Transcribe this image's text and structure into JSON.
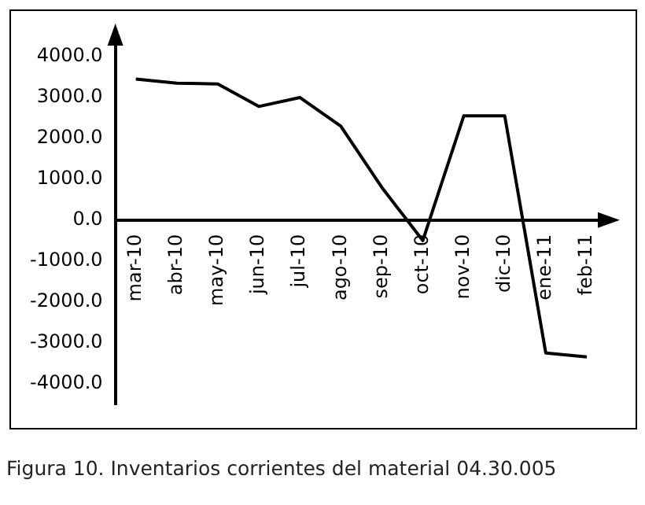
{
  "chart_data": {
    "type": "line",
    "categories": [
      "mar-10",
      "abr-10",
      "may-10",
      "jun-10",
      "jul-10",
      "ago-10",
      "sep-10",
      "oct-10",
      "nov-10",
      "dic-10",
      "ene-11",
      "feb-11"
    ],
    "series": [
      {
        "color": "#000000",
        "values": [
          3450,
          3350,
          3330,
          2780,
          3000,
          2300,
          800,
          -500,
          2550,
          2550,
          -3250,
          -3350
        ]
      }
    ],
    "ylim": [
      -4500,
      4500
    ],
    "yticks": [
      {
        "value": -4000,
        "label": "-4000.0"
      },
      {
        "value": -3000,
        "label": "-3000.0"
      },
      {
        "value": -2000,
        "label": "-2000.0"
      },
      {
        "value": -1000,
        "label": "-1000.0"
      },
      {
        "value": 0,
        "label": "0.0"
      },
      {
        "value": 1000,
        "label": "1000.0"
      },
      {
        "value": 2000,
        "label": "2000.0"
      },
      {
        "value": 3000,
        "label": "3000.0"
      },
      {
        "value": 4000,
        "label": "4000.0"
      }
    ],
    "grid": false,
    "legend": false,
    "marker": "none",
    "line_style": "solid",
    "annotations": [
      "Figura 10. Inventarios corrientes del material 04.30.005"
    ]
  }
}
